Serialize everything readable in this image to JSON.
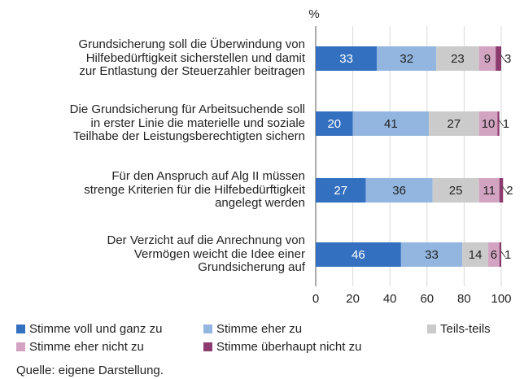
{
  "chart_data": {
    "type": "stacked-bar-horizontal",
    "unit_label": "%",
    "categories": [
      "Grundsicherung soll die Überwindung von\nHilfebedürftigkeit sicherstellen und damit\nzur Entlastung der Steuerzahler beitragen",
      "Die Grundsicherung für Arbeitsuchende soll\nin erster Linie die materielle und soziale\nTeilhabe der Leistungsberechtigten sichern",
      "Für den Anspruch auf Alg II müssen\nstrenge Kriterien für die Hilfebedürftigkeit\nangelegt werden",
      "Der Verzicht auf die Anrechnung von\nVermögen weicht die Idee einer\nGrundsicherung auf"
    ],
    "series": [
      {
        "name": "Stimme voll und ganz zu",
        "color": "#3470c0",
        "values": [
          33,
          20,
          27,
          46
        ]
      },
      {
        "name": "Stimme eher zu",
        "color": "#93b6e0",
        "values": [
          32,
          41,
          36,
          33
        ]
      },
      {
        "name": "Teils-teils",
        "color": "#cbcbcb",
        "values": [
          23,
          27,
          25,
          14
        ]
      },
      {
        "name": "Stimme eher nicht zu",
        "color": "#d3a4c2",
        "values": [
          9,
          10,
          11,
          6
        ]
      },
      {
        "name": "Stimme überhaupt nicht zu",
        "color": "#8c3b6f",
        "values": [
          3,
          1,
          2,
          1
        ]
      }
    ],
    "xlim": [
      0,
      100
    ],
    "xticks": [
      0,
      20,
      40,
      60,
      80,
      100
    ],
    "grid": true,
    "source": "Quelle: eigene Darstellung."
  }
}
